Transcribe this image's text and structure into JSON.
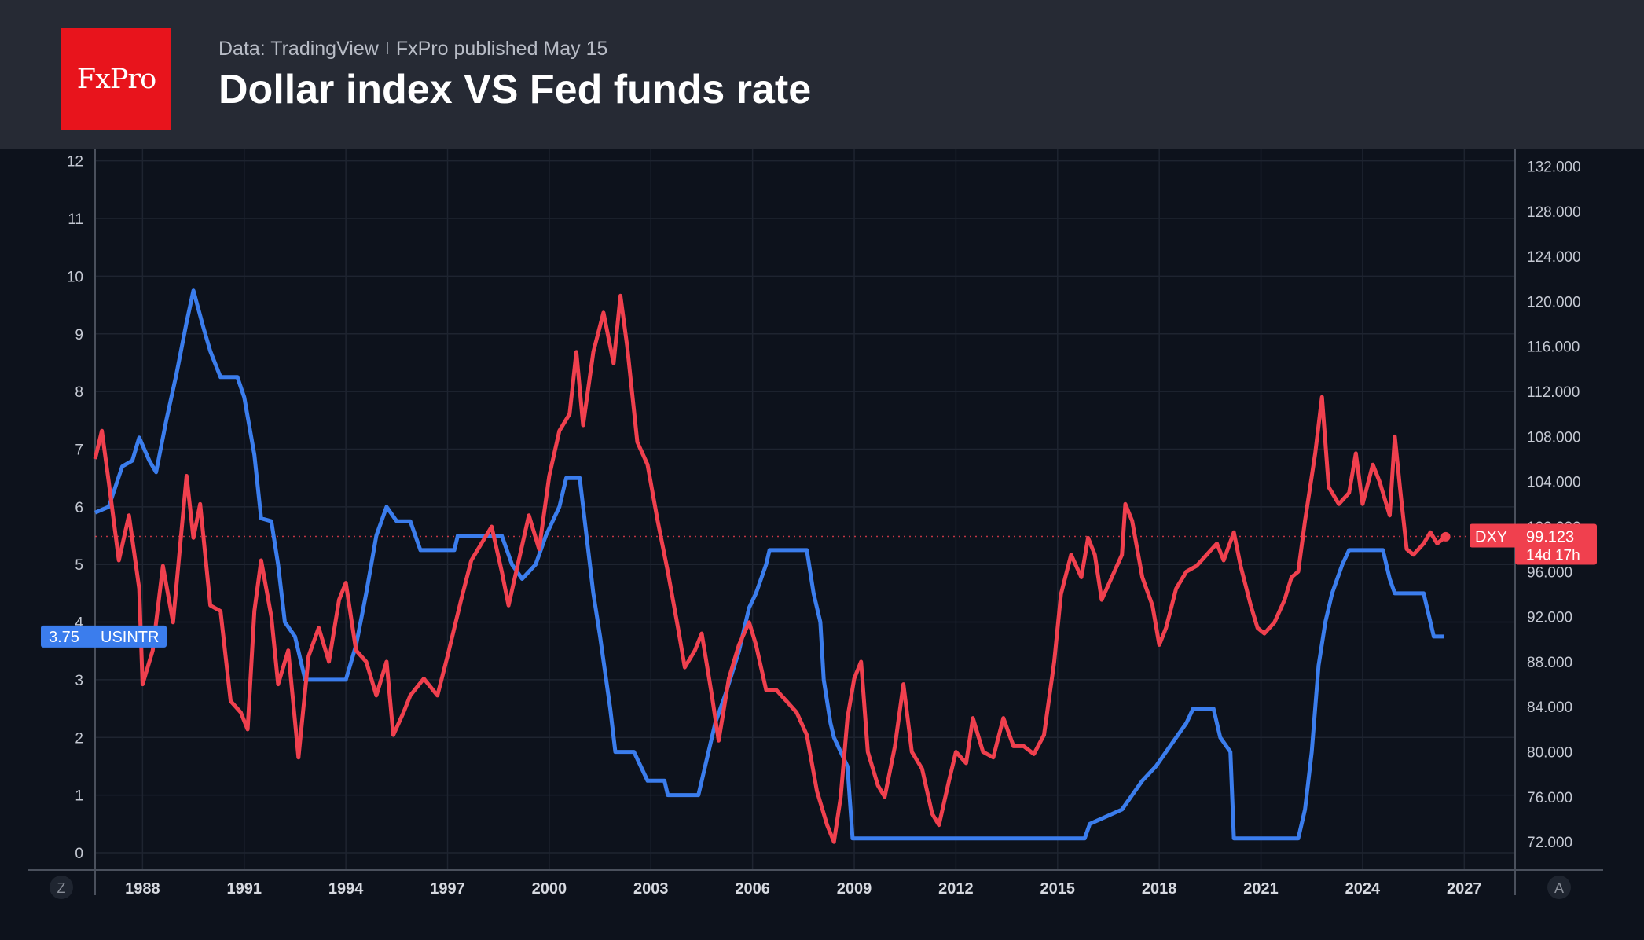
{
  "header": {
    "logo_text": "FxPro",
    "source_text": "Data: TradingView",
    "publisher_text": "FxPro published May 15",
    "title": "Dollar index VS Fed funds rate"
  },
  "chart_data": {
    "type": "line",
    "title": "Dollar index VS Fed funds rate",
    "x_axis": {
      "ticks": [
        "1988",
        "1991",
        "1994",
        "1997",
        "2000",
        "2003",
        "2006",
        "2009",
        "2012",
        "2015",
        "2018",
        "2021",
        "2024",
        "2027"
      ],
      "range": [
        1986.6,
        2028.5
      ]
    },
    "y_left": {
      "ticks": [
        "0",
        "1",
        "2",
        "3",
        "4",
        "5",
        "6",
        "7",
        "8",
        "9",
        "10",
        "11",
        "12"
      ],
      "range": [
        -0.3,
        12.2
      ]
    },
    "y_right": {
      "ticks": [
        "72.000",
        "76.000",
        "80.000",
        "84.000",
        "88.000",
        "92.000",
        "96.000",
        "100.000",
        "104.000",
        "108.000",
        "112.000",
        "116.000",
        "120.000",
        "124.000",
        "128.000",
        "132.000"
      ],
      "range": [
        69.5,
        133.5
      ]
    },
    "grid": true,
    "colors": {
      "usintr": "#3b7ded",
      "dxy": "#f0404e",
      "background": "#0d121c"
    },
    "series": [
      {
        "name": "USINTR",
        "axis": "left",
        "last_value": "3.75",
        "points": [
          [
            1986.6,
            5.9
          ],
          [
            1987.0,
            6.0
          ],
          [
            1987.4,
            6.7
          ],
          [
            1987.7,
            6.8
          ],
          [
            1987.9,
            7.2
          ],
          [
            1988.2,
            6.8
          ],
          [
            1988.4,
            6.6
          ],
          [
            1988.7,
            7.5
          ],
          [
            1989.0,
            8.3
          ],
          [
            1989.3,
            9.2
          ],
          [
            1989.5,
            9.75
          ],
          [
            1989.8,
            9.1
          ],
          [
            1990.0,
            8.7
          ],
          [
            1990.3,
            8.25
          ],
          [
            1990.8,
            8.25
          ],
          [
            1991.0,
            7.9
          ],
          [
            1991.3,
            6.9
          ],
          [
            1991.5,
            5.8
          ],
          [
            1991.8,
            5.75
          ],
          [
            1992.0,
            5.0
          ],
          [
            1992.2,
            4.0
          ],
          [
            1992.5,
            3.75
          ],
          [
            1992.8,
            3.0
          ],
          [
            1993.0,
            3.0
          ],
          [
            1993.5,
            3.0
          ],
          [
            1994.0,
            3.0
          ],
          [
            1994.3,
            3.6
          ],
          [
            1994.6,
            4.5
          ],
          [
            1994.9,
            5.5
          ],
          [
            1995.2,
            6.0
          ],
          [
            1995.5,
            5.75
          ],
          [
            1995.9,
            5.75
          ],
          [
            1996.2,
            5.25
          ],
          [
            1996.6,
            5.25
          ],
          [
            1997.2,
            5.25
          ],
          [
            1997.3,
            5.5
          ],
          [
            1998.0,
            5.5
          ],
          [
            1998.6,
            5.5
          ],
          [
            1998.9,
            5.0
          ],
          [
            1999.2,
            4.75
          ],
          [
            1999.6,
            5.0
          ],
          [
            1999.9,
            5.5
          ],
          [
            2000.3,
            6.0
          ],
          [
            2000.5,
            6.5
          ],
          [
            2000.9,
            6.5
          ],
          [
            2001.1,
            5.5
          ],
          [
            2001.3,
            4.5
          ],
          [
            2001.5,
            3.75
          ],
          [
            2001.8,
            2.5
          ],
          [
            2001.95,
            1.75
          ],
          [
            2002.5,
            1.75
          ],
          [
            2002.9,
            1.25
          ],
          [
            2003.4,
            1.25
          ],
          [
            2003.5,
            1.0
          ],
          [
            2004.4,
            1.0
          ],
          [
            2004.6,
            1.5
          ],
          [
            2004.9,
            2.25
          ],
          [
            2005.2,
            2.75
          ],
          [
            2005.6,
            3.5
          ],
          [
            2005.9,
            4.25
          ],
          [
            2006.1,
            4.5
          ],
          [
            2006.4,
            5.0
          ],
          [
            2006.5,
            5.25
          ],
          [
            2007.6,
            5.25
          ],
          [
            2007.8,
            4.5
          ],
          [
            2008.0,
            4.0
          ],
          [
            2008.1,
            3.0
          ],
          [
            2008.3,
            2.25
          ],
          [
            2008.4,
            2.0
          ],
          [
            2008.8,
            1.5
          ],
          [
            2008.95,
            0.25
          ],
          [
            2015.8,
            0.25
          ],
          [
            2015.95,
            0.5
          ],
          [
            2016.9,
            0.75
          ],
          [
            2017.2,
            1.0
          ],
          [
            2017.5,
            1.25
          ],
          [
            2017.9,
            1.5
          ],
          [
            2018.2,
            1.75
          ],
          [
            2018.5,
            2.0
          ],
          [
            2018.8,
            2.25
          ],
          [
            2019.0,
            2.5
          ],
          [
            2019.6,
            2.5
          ],
          [
            2019.8,
            2.0
          ],
          [
            2020.1,
            1.75
          ],
          [
            2020.2,
            0.25
          ],
          [
            2022.1,
            0.25
          ],
          [
            2022.3,
            0.75
          ],
          [
            2022.5,
            1.75
          ],
          [
            2022.7,
            3.25
          ],
          [
            2022.9,
            4.0
          ],
          [
            2023.1,
            4.5
          ],
          [
            2023.4,
            5.0
          ],
          [
            2023.6,
            5.25
          ],
          [
            2024.6,
            5.25
          ],
          [
            2024.8,
            4.75
          ],
          [
            2024.95,
            4.5
          ],
          [
            2025.8,
            4.5
          ],
          [
            2025.9,
            4.25
          ],
          [
            2026.0,
            4.0
          ],
          [
            2026.1,
            3.75
          ],
          [
            2026.4,
            3.75
          ]
        ]
      },
      {
        "name": "DXY",
        "axis": "right",
        "last_value": "99.123",
        "countdown": "14d 17h",
        "points": [
          [
            1986.6,
            106.0
          ],
          [
            1986.8,
            108.5
          ],
          [
            1987.0,
            104.0
          ],
          [
            1987.3,
            97.0
          ],
          [
            1987.6,
            101.0
          ],
          [
            1987.9,
            94.5
          ],
          [
            1988.0,
            86.0
          ],
          [
            1988.3,
            89.0
          ],
          [
            1988.6,
            96.5
          ],
          [
            1988.9,
            91.5
          ],
          [
            1989.1,
            98.0
          ],
          [
            1989.3,
            104.5
          ],
          [
            1989.5,
            99.0
          ],
          [
            1989.7,
            102.0
          ],
          [
            1990.0,
            93.0
          ],
          [
            1990.3,
            92.5
          ],
          [
            1990.6,
            84.5
          ],
          [
            1990.9,
            83.5
          ],
          [
            1991.1,
            82.0
          ],
          [
            1991.3,
            92.5
          ],
          [
            1991.5,
            97.0
          ],
          [
            1991.8,
            92.0
          ],
          [
            1992.0,
            86.0
          ],
          [
            1992.3,
            89.0
          ],
          [
            1992.6,
            79.5
          ],
          [
            1992.9,
            88.5
          ],
          [
            1993.2,
            91.0
          ],
          [
            1993.5,
            88.0
          ],
          [
            1993.8,
            93.5
          ],
          [
            1994.0,
            95.0
          ],
          [
            1994.3,
            89.0
          ],
          [
            1994.6,
            88.0
          ],
          [
            1994.9,
            85.0
          ],
          [
            1995.2,
            88.0
          ],
          [
            1995.4,
            81.5
          ],
          [
            1995.7,
            83.5
          ],
          [
            1995.9,
            85.0
          ],
          [
            1996.3,
            86.5
          ],
          [
            1996.7,
            85.0
          ],
          [
            1997.0,
            88.5
          ],
          [
            1997.4,
            93.5
          ],
          [
            1997.7,
            97.0
          ],
          [
            1998.0,
            98.5
          ],
          [
            1998.3,
            100.0
          ],
          [
            1998.6,
            96.0
          ],
          [
            1998.8,
            93.0
          ],
          [
            1999.1,
            97.0
          ],
          [
            1999.4,
            101.0
          ],
          [
            1999.7,
            98.0
          ],
          [
            2000.0,
            104.5
          ],
          [
            2000.3,
            108.5
          ],
          [
            2000.6,
            110.0
          ],
          [
            2000.8,
            115.5
          ],
          [
            2001.0,
            109.0
          ],
          [
            2001.3,
            115.5
          ],
          [
            2001.6,
            119.0
          ],
          [
            2001.9,
            114.5
          ],
          [
            2002.1,
            120.5
          ],
          [
            2002.3,
            116.0
          ],
          [
            2002.6,
            107.5
          ],
          [
            2002.9,
            105.5
          ],
          [
            2003.2,
            100.5
          ],
          [
            2003.5,
            96.0
          ],
          [
            2003.8,
            91.0
          ],
          [
            2004.0,
            87.5
          ],
          [
            2004.3,
            89.0
          ],
          [
            2004.5,
            90.5
          ],
          [
            2004.8,
            85.0
          ],
          [
            2005.0,
            81.0
          ],
          [
            2005.3,
            86.5
          ],
          [
            2005.6,
            89.5
          ],
          [
            2005.9,
            91.5
          ],
          [
            2006.1,
            89.5
          ],
          [
            2006.4,
            85.5
          ],
          [
            2006.7,
            85.5
          ],
          [
            2007.0,
            84.5
          ],
          [
            2007.3,
            83.5
          ],
          [
            2007.6,
            81.5
          ],
          [
            2007.9,
            76.5
          ],
          [
            2008.2,
            73.5
          ],
          [
            2008.4,
            72.0
          ],
          [
            2008.6,
            76.0
          ],
          [
            2008.8,
            83.0
          ],
          [
            2009.0,
            86.5
          ],
          [
            2009.2,
            88.0
          ],
          [
            2009.4,
            80.0
          ],
          [
            2009.7,
            77.0
          ],
          [
            2009.9,
            76.0
          ],
          [
            2010.2,
            80.5
          ],
          [
            2010.45,
            86.0
          ],
          [
            2010.7,
            80.0
          ],
          [
            2011.0,
            78.5
          ],
          [
            2011.3,
            74.5
          ],
          [
            2011.5,
            73.5
          ],
          [
            2011.8,
            77.5
          ],
          [
            2012.0,
            80.0
          ],
          [
            2012.3,
            79.0
          ],
          [
            2012.5,
            83.0
          ],
          [
            2012.8,
            80.0
          ],
          [
            2013.1,
            79.5
          ],
          [
            2013.4,
            83.0
          ],
          [
            2013.7,
            80.5
          ],
          [
            2014.0,
            80.5
          ],
          [
            2014.3,
            79.8
          ],
          [
            2014.6,
            81.5
          ],
          [
            2014.9,
            88.0
          ],
          [
            2015.1,
            94.0
          ],
          [
            2015.4,
            97.5
          ],
          [
            2015.7,
            95.5
          ],
          [
            2015.9,
            99.0
          ],
          [
            2016.1,
            97.5
          ],
          [
            2016.3,
            93.5
          ],
          [
            2016.6,
            95.5
          ],
          [
            2016.9,
            97.5
          ],
          [
            2017.0,
            102.0
          ],
          [
            2017.2,
            100.5
          ],
          [
            2017.5,
            95.5
          ],
          [
            2017.8,
            93.0
          ],
          [
            2018.0,
            89.5
          ],
          [
            2018.2,
            91.0
          ],
          [
            2018.5,
            94.5
          ],
          [
            2018.8,
            96.0
          ],
          [
            2019.1,
            96.5
          ],
          [
            2019.4,
            97.5
          ],
          [
            2019.7,
            98.5
          ],
          [
            2019.9,
            97.0
          ],
          [
            2020.2,
            99.5
          ],
          [
            2020.4,
            96.5
          ],
          [
            2020.7,
            93.0
          ],
          [
            2020.9,
            91.0
          ],
          [
            2021.1,
            90.5
          ],
          [
            2021.4,
            91.5
          ],
          [
            2021.7,
            93.5
          ],
          [
            2021.9,
            95.5
          ],
          [
            2022.1,
            96.0
          ],
          [
            2022.3,
            100.5
          ],
          [
            2022.6,
            106.5
          ],
          [
            2022.8,
            111.5
          ],
          [
            2023.0,
            103.5
          ],
          [
            2023.3,
            102.0
          ],
          [
            2023.6,
            103.0
          ],
          [
            2023.8,
            106.5
          ],
          [
            2024.0,
            102.0
          ],
          [
            2024.3,
            105.5
          ],
          [
            2024.5,
            104.0
          ],
          [
            2024.8,
            101.0
          ],
          [
            2024.95,
            108.0
          ],
          [
            2025.1,
            103.5
          ],
          [
            2025.3,
            98.0
          ],
          [
            2025.5,
            97.5
          ],
          [
            2025.8,
            98.5
          ],
          [
            2026.0,
            99.5
          ],
          [
            2026.2,
            98.5
          ],
          [
            2026.45,
            99.1
          ]
        ]
      }
    ]
  },
  "labels": {
    "usintr_value": "3.75",
    "usintr_name": "USINTR",
    "dxy_name": "DXY",
    "dxy_value": "99.123",
    "dxy_countdown": "14d 17h",
    "left_corner": "Z",
    "right_corner": "A"
  }
}
